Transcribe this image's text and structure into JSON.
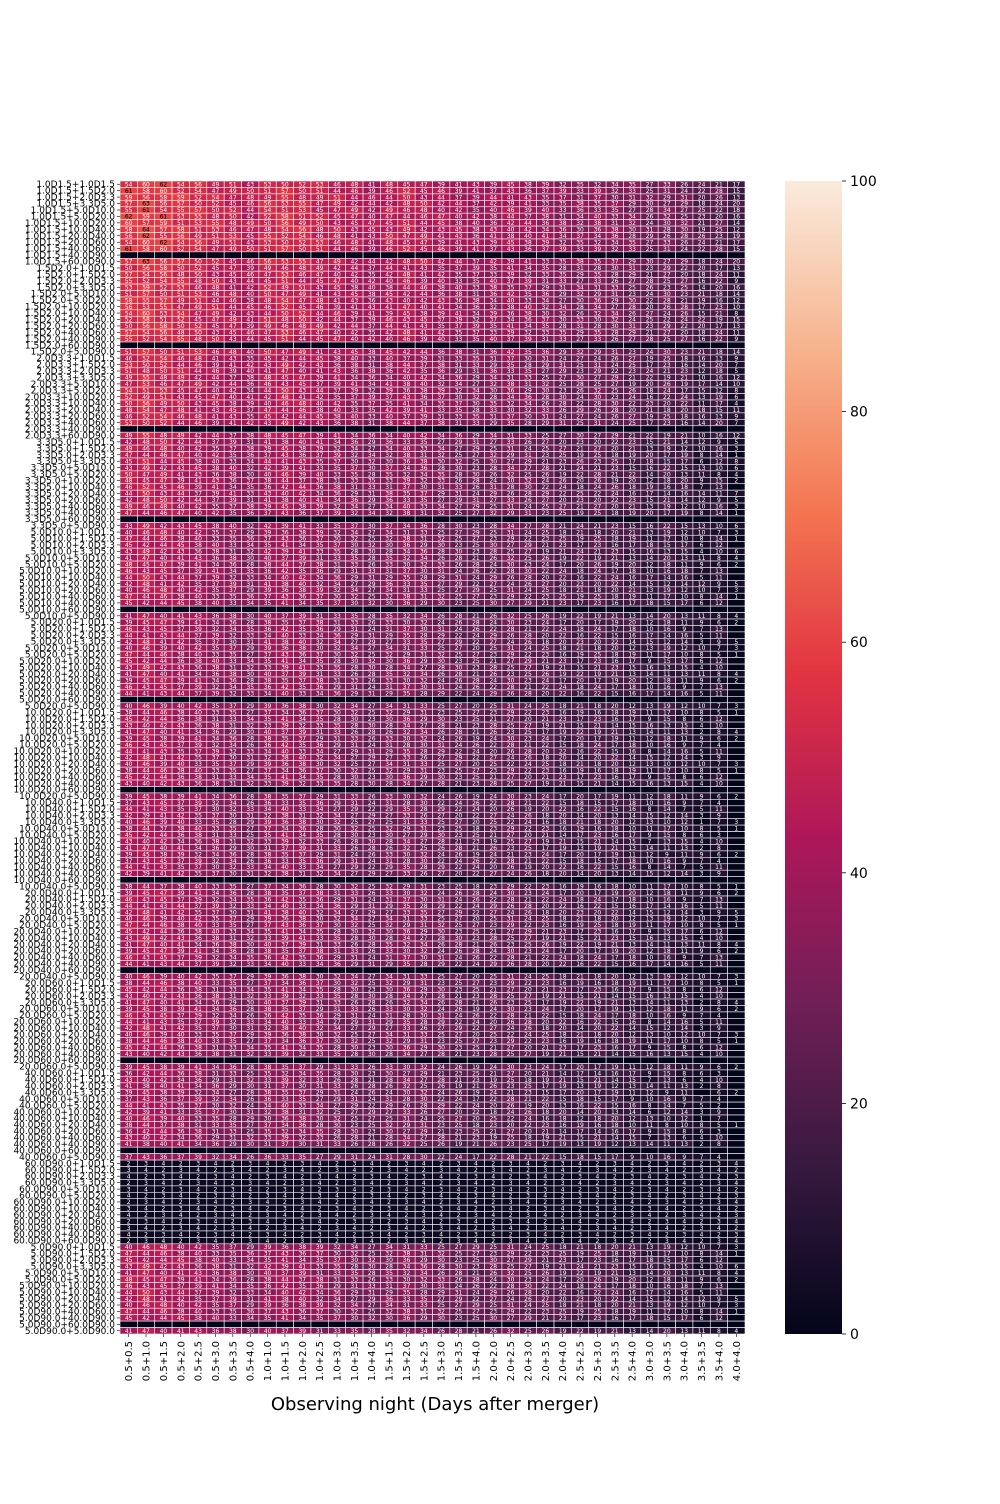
{
  "chart_data": {
    "type": "heatmap",
    "xlabel": "Observing night (Days after merger)",
    "ylabel": "",
    "x_categories": [
      "0.5+0.5",
      "0.5+1.0",
      "0.5+1.5",
      "0.5+2.0",
      "0.5+2.5",
      "0.5+3.0",
      "0.5+3.5",
      "0.5+4.0",
      "1.0+1.0",
      "1.0+1.5",
      "1.0+2.0",
      "1.0+2.5",
      "1.0+3.0",
      "1.0+3.5",
      "1.0+4.0",
      "1.5+1.5",
      "1.5+2.0",
      "1.5+2.5",
      "1.5+3.0",
      "1.5+3.5",
      "1.5+4.0",
      "2.0+2.0",
      "2.0+2.5",
      "2.0+3.0",
      "2.0+3.5",
      "2.0+4.0",
      "2.5+2.5",
      "2.5+3.0",
      "2.5+3.5",
      "2.5+4.0",
      "3.0+3.0",
      "3.0+3.5",
      "3.0+4.0",
      "3.5+3.5",
      "3.5+4.0",
      "4.0+4.0"
    ],
    "x_start_days": [
      0.5,
      0.5,
      0.5,
      0.5,
      0.5,
      0.5,
      0.5,
      0.5,
      1.0,
      1.0,
      1.0,
      1.0,
      1.0,
      1.0,
      1.0,
      1.5,
      1.5,
      1.5,
      1.5,
      1.5,
      1.5,
      2.0,
      2.0,
      2.0,
      2.0,
      2.0,
      2.5,
      2.5,
      2.5,
      2.5,
      3.0,
      3.0,
      3.0,
      3.5,
      3.5,
      4.0
    ],
    "x_end_days": [
      0.5,
      1.0,
      1.5,
      2.0,
      2.5,
      3.0,
      3.5,
      4.0,
      1.0,
      1.5,
      2.0,
      2.5,
      3.0,
      3.5,
      4.0,
      1.5,
      2.0,
      2.5,
      3.0,
      3.5,
      4.0,
      2.0,
      2.5,
      3.0,
      3.5,
      4.0,
      2.5,
      3.0,
      3.5,
      4.0,
      3.0,
      3.5,
      4.0,
      3.5,
      4.0,
      4.0
    ],
    "y_groups": [
      {
        "label": "1.0D1.5",
        "rows": [
          "1.0D1.5+1.0D1.5",
          "1.0D1.5+1.5D2.0",
          "1.0D1.5+2.0D3.3",
          "1.0D1.5+3.3D5.0",
          "1.0D1.5+5.0D10.0",
          "1.0D1.5+5.0D20.0",
          "1.0D1.5+10.0D20.0",
          "1.0D1.5+10.0D40.0",
          "1.0D1.5+20.0D40.0",
          "1.0D1.5+20.0D60.0",
          "1.0D1.5+40.0D60.0",
          "1.0D1.5+40.0D90.0",
          "1.0D1.5+60.0D90.0"
        ],
        "level": 62,
        "blank_row": 11
      },
      {
        "label": "1.5D2.0",
        "rows": [
          "1.5D2.0+1.0D1.5",
          "1.5D2.0+1.5D2.0",
          "1.5D2.0+2.0D3.3",
          "1.5D2.0+3.3D5.0",
          "1.5D2.0+5.0D10.0",
          "1.5D2.0+5.0D20.0",
          "1.5D2.0+10.0D20.0",
          "1.5D2.0+10.0D40.0",
          "1.5D2.0+20.0D40.0",
          "1.5D2.0+20.0D60.0",
          "1.5D2.0+40.0D60.0",
          "1.5D2.0+40.0D90.0",
          "1.5D2.0+60.0D90.0",
          "1.5D2.0+5.0D90.0"
        ],
        "level": 58,
        "blank_row": 12
      },
      {
        "label": "2.0D3.3",
        "rows": [
          "2.0D3.3+1.0D1.5",
          "2.0D3.3+1.5D2.0",
          "2.0D3.3+2.0D3.3",
          "2.0D3.3+3.3D5.0",
          "2.0D3.3+5.0D10.0",
          "2.0D3.3+5.0D20.0",
          "2.0D3.3+10.0D20.0",
          "2.0D3.3+10.0D40.0",
          "2.0D3.3+20.0D40.0",
          "2.0D3.3+20.0D60.0",
          "2.0D3.3+40.0D60.0",
          "2.0D3.3+40.0D90.0",
          "2.0D3.3+60.0D90.0"
        ],
        "level": 54,
        "blank_row": 11
      },
      {
        "label": "3.3D5.0",
        "rows": [
          "3.3D5.0+1.0D1.5",
          "3.3D5.0+1.5D2.0",
          "3.3D5.0+2.0D3.3",
          "3.3D5.0+3.3D5.0",
          "3.3D5.0+5.0D10.0",
          "3.3D5.0+5.0D20.0",
          "3.3D5.0+10.0D20.0",
          "3.3D5.0+10.0D40.0",
          "3.3D5.0+20.0D40.0",
          "3.3D5.0+20.0D60.0",
          "3.3D5.0+40.0D60.0",
          "3.3D5.0+40.0D90.0",
          "3.3D5.0+60.0D90.0",
          "3.3D5.0+5.0D90.0"
        ],
        "level": 50,
        "blank_row": 12
      },
      {
        "label": "5.0D10.0",
        "rows": [
          "5.0D10.0+1.0D1.5",
          "5.0D10.0+1.5D2.0",
          "5.0D10.0+2.0D3.3",
          "5.0D10.0+3.3D5.0",
          "5.0D10.0+5.0D10.0",
          "5.0D10.0+5.0D20.0",
          "5.0D10.0+10.0D20.0",
          "5.0D10.0+10.0D40.0",
          "5.0D10.0+20.0D40.0",
          "5.0D10.0+20.0D60.0",
          "5.0D10.0+40.0D60.0",
          "5.0D10.0+40.0D90.0",
          "5.0D10.0+60.0D90.0",
          "5.0D10.0+5.0D90.0"
        ],
        "level": 48,
        "blank_row": 12
      },
      {
        "label": "5.0D20.0",
        "rows": [
          "5.0D20.0+1.0D1.5",
          "5.0D20.0+1.5D2.0",
          "5.0D20.0+2.0D3.3",
          "5.0D20.0+3.3D5.0",
          "5.0D20.0+5.0D10.0",
          "5.0D20.0+5.0D20.0",
          "5.0D20.0+10.0D20.0",
          "5.0D20.0+10.0D40.0",
          "5.0D20.0+20.0D40.0",
          "5.0D20.0+20.0D60.0",
          "5.0D20.0+40.0D60.0",
          "5.0D20.0+40.0D90.0",
          "5.0D20.0+60.0D90.0",
          "5.0D20.0+5.0D90.0"
        ],
        "level": 47,
        "blank_row": 12
      },
      {
        "label": "10.0D20.0",
        "rows": [
          "10.0D20.0+1.0D1.5",
          "10.0D20.0+1.5D2.0",
          "10.0D20.0+2.0D3.3",
          "10.0D20.0+3.3D5.0",
          "10.0D20.0+5.0D10.0",
          "10.0D20.0+5.0D20.0",
          "10.0D20.0+10.0D20.0",
          "10.0D20.0+10.0D40.0",
          "10.0D20.0+20.0D40.0",
          "10.0D20.0+20.0D60.0",
          "10.0D20.0+40.0D60.0",
          "10.0D20.0+40.0D90.0",
          "10.0D20.0+60.0D90.0",
          "10.0D20.0+5.0D90.0"
        ],
        "level": 46,
        "blank_row": 12
      },
      {
        "label": "10.0D40.0",
        "rows": [
          "10.0D40.0+1.0D1.5",
          "10.0D40.0+1.5D2.0",
          "10.0D40.0+2.0D3.3",
          "10.0D40.0+3.3D5.0",
          "10.0D40.0+5.0D10.0",
          "10.0D40.0+5.0D20.0",
          "10.0D40.0+10.0D20.0",
          "10.0D40.0+10.0D40.0",
          "10.0D40.0+20.0D40.0",
          "10.0D40.0+20.0D60.0",
          "10.0D40.0+40.0D60.0",
          "10.0D40.0+40.0D90.0",
          "10.0D40.0+60.0D90.0",
          "10.0D40.0+5.0D90.0"
        ],
        "level": 45,
        "blank_row": 12
      },
      {
        "label": "20.0D40.0",
        "rows": [
          "20.0D40.0+1.0D1.5",
          "20.0D40.0+1.5D2.0",
          "20.0D40.0+2.0D3.3",
          "20.0D40.0+3.3D5.0",
          "20.0D40.0+5.0D10.0",
          "20.0D40.0+5.0D20.0",
          "20.0D40.0+10.0D20.0",
          "20.0D40.0+10.0D40.0",
          "20.0D40.0+20.0D40.0",
          "20.0D40.0+20.0D60.0",
          "20.0D40.0+40.0D60.0",
          "20.0D40.0+40.0D90.0",
          "20.0D40.0+60.0D90.0",
          "20.0D40.0+5.0D90.0"
        ],
        "level": 47,
        "blank_row": 12
      },
      {
        "label": "20.0D60.0",
        "rows": [
          "20.0D60.0+1.0D1.5",
          "20.0D60.0+1.5D2.0",
          "20.0D60.0+2.0D3.3",
          "20.0D60.0+3.3D5.0",
          "20.0D60.0+5.0D10.0",
          "20.0D60.0+5.0D20.0",
          "20.0D60.0+10.0D20.0",
          "20.0D60.0+10.0D40.0",
          "20.0D60.0+20.0D40.0",
          "20.0D60.0+20.0D60.0",
          "20.0D60.0+40.0D60.0",
          "20.0D60.0+40.0D90.0",
          "20.0D60.0+60.0D90.0",
          "20.0D60.0+5.0D90.0"
        ],
        "level": 46,
        "blank_row": 12
      },
      {
        "label": "40.0D60.0",
        "rows": [
          "40.0D60.0+1.0D1.5",
          "40.0D60.0+1.5D2.0",
          "40.0D60.0+2.0D3.3",
          "40.0D60.0+3.3D5.0",
          "40.0D60.0+5.0D10.0",
          "40.0D60.0+5.0D20.0",
          "40.0D60.0+10.0D20.0",
          "40.0D60.0+10.0D40.0",
          "40.0D60.0+20.0D40.0",
          "40.0D60.0+20.0D60.0",
          "40.0D60.0+40.0D60.0",
          "40.0D60.0+40.0D90.0",
          "40.0D60.0+60.0D90.0",
          "40.0D60.0+5.0D90.0"
        ],
        "level": 44,
        "blank_row": 12
      },
      {
        "label": "60.0D90.0",
        "rows": [
          "60.0D90.0+1.0D1.5",
          "60.0D90.0+1.5D2.0",
          "60.0D90.0+2.0D3.3",
          "60.0D90.0+3.3D5.0",
          "60.0D90.0+5.0D10.0",
          "60.0D90.0+5.0D20.0",
          "60.0D90.0+10.0D20.0",
          "60.0D90.0+10.0D40.0",
          "60.0D90.0+20.0D40.0",
          "60.0D90.0+20.0D60.0",
          "60.0D90.0+40.0D60.0",
          "60.0D90.0+40.0D90.0",
          "60.0D90.0+60.0D90.0"
        ],
        "level": 5,
        "blank_row": null
      },
      {
        "label": "5.0D90.0",
        "rows": [
          "5.0D90.0+1.0D1.5",
          "5.0D90.0+1.5D2.0",
          "5.0D90.0+2.0D3.3",
          "5.0D90.0+3.3D5.0",
          "5.0D90.0+5.0D10.0",
          "5.0D90.0+5.0D20.0",
          "5.0D90.0+10.0D20.0",
          "5.0D90.0+10.0D40.0",
          "5.0D90.0+20.0D40.0",
          "5.0D90.0+20.0D60.0",
          "5.0D90.0+40.0D60.0",
          "5.0D90.0+40.0D90.0",
          "5.0D90.0+60.0D90.0",
          "5.0D90.0+5.0D90.0"
        ],
        "level": 48,
        "blank_row": 12
      }
    ],
    "value_range": [
      0,
      100
    ],
    "colorbar_ticks": [
      0,
      20,
      40,
      60,
      80,
      100
    ],
    "colormap": "rocket",
    "colormap_stops": [
      "#03051a",
      "#36193e",
      "#701f57",
      "#ad1759",
      "#e13342",
      "#f37651",
      "#f6b48f",
      "#faebdd"
    ],
    "cell_annotations": true,
    "grid_line_color": "#ffffff"
  }
}
